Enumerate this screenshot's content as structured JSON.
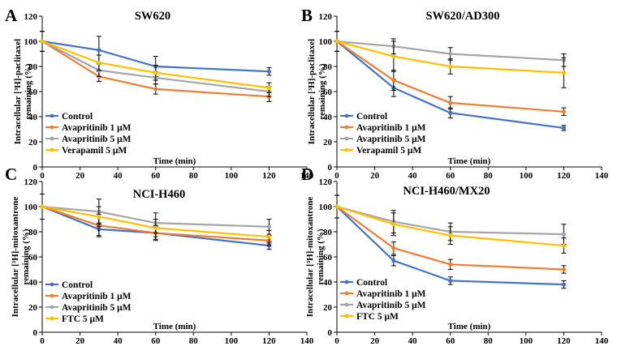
{
  "chart_data": [
    {
      "type": "line",
      "panel_letter": "A",
      "title": "SW620",
      "xlabel": "Time (min)",
      "ylabel": [
        "Intracellular [³H]-paclitaxel",
        "remaining (%)"
      ],
      "xlim": [
        0,
        140
      ],
      "ylim": [
        0,
        120
      ],
      "xticks": [
        0,
        20,
        40,
        60,
        80,
        100,
        120,
        140
      ],
      "yticks": [
        0,
        20,
        40,
        60,
        80,
        100,
        120
      ],
      "x": [
        0,
        30,
        60,
        120
      ],
      "legend_position": "bottom-left",
      "series": [
        {
          "name": "Control",
          "color": "#4472C4",
          "values": [
            100,
            93,
            80,
            76
          ],
          "errors": [
            8,
            11,
            8,
            3
          ]
        },
        {
          "name": "Avapritinib 1 μM",
          "color": "#ED7D31",
          "values": [
            100,
            72,
            62,
            56
          ],
          "errors": [
            8,
            4,
            4,
            4
          ]
        },
        {
          "name": "Avapritinib 5 μM",
          "color": "#A5A5A5",
          "values": [
            100,
            77,
            71,
            60
          ],
          "errors": [
            8,
            5,
            5,
            4
          ]
        },
        {
          "name": "Verapamil 5 μM",
          "color": "#FFC000",
          "values": [
            100,
            83,
            75,
            63
          ],
          "errors": [
            8,
            6,
            6,
            4
          ]
        }
      ]
    },
    {
      "type": "line",
      "panel_letter": "B",
      "title": "SW620/AD300",
      "xlabel": "Time (min)",
      "ylabel": [
        "Intracellular [³H]-paclitaxel",
        "remaining (%)"
      ],
      "xlim": [
        0,
        140
      ],
      "ylim": [
        0,
        120
      ],
      "xticks": [
        0,
        20,
        40,
        60,
        80,
        100,
        120,
        140
      ],
      "yticks": [
        0,
        20,
        40,
        60,
        80,
        100,
        120
      ],
      "x": [
        0,
        30,
        60,
        120
      ],
      "legend_position": "bottom-left",
      "series": [
        {
          "name": "Control",
          "color": "#4472C4",
          "values": [
            100,
            63,
            43,
            31
          ],
          "errors": [
            8,
            7,
            4,
            2
          ]
        },
        {
          "name": "Avapritinib 1 μM",
          "color": "#ED7D31",
          "values": [
            100,
            69,
            51,
            44
          ],
          "errors": [
            8,
            8,
            5,
            3
          ]
        },
        {
          "name": "Avapritinib 5 μM",
          "color": "#A5A5A5",
          "values": [
            100,
            96,
            90,
            85
          ],
          "errors": [
            8,
            6,
            5,
            5
          ]
        },
        {
          "name": "Verapamil 5 μM",
          "color": "#FFC000",
          "values": [
            100,
            88,
            80,
            75
          ],
          "errors": [
            8,
            12,
            6,
            12
          ]
        }
      ]
    },
    {
      "type": "line",
      "panel_letter": "C",
      "title": "NCI-H460",
      "xlabel": "Time (min)",
      "ylabel": [
        "Intracellular [³H]-mitoxantrone",
        "remaining (%)"
      ],
      "xlim": [
        0,
        140
      ],
      "ylim": [
        0,
        120
      ],
      "xticks": [
        0,
        20,
        40,
        60,
        80,
        100,
        120,
        140
      ],
      "yticks": [
        0,
        20,
        40,
        60,
        80,
        100,
        120
      ],
      "x": [
        0,
        30,
        60,
        120
      ],
      "legend_position": "bottom-left",
      "series": [
        {
          "name": "Control",
          "color": "#4472C4",
          "values": [
            100,
            82,
            79,
            69
          ],
          "errors": [
            10,
            5,
            5,
            3
          ]
        },
        {
          "name": "Avapritinib 1 μM",
          "color": "#ED7D31",
          "values": [
            100,
            85,
            79,
            73
          ],
          "errors": [
            10,
            9,
            6,
            4
          ]
        },
        {
          "name": "Avapritinib 5 μM",
          "color": "#A5A5A5",
          "values": [
            100,
            96,
            87,
            84
          ],
          "errors": [
            10,
            10,
            8,
            6
          ]
        },
        {
          "name": "FTC 5 μM",
          "color": "#FFC000",
          "values": [
            100,
            92,
            83,
            76
          ],
          "errors": [
            10,
            8,
            7,
            5
          ]
        }
      ]
    },
    {
      "type": "line",
      "panel_letter": "D",
      "title": "NCI-H460/MX20",
      "xlabel": "Time (min)",
      "ylabel": [
        "Intracellular [³H]-mitoxantrone",
        "remaining (%)"
      ],
      "xlim": [
        0,
        140
      ],
      "ylim": [
        0,
        120
      ],
      "xticks": [
        0,
        20,
        40,
        60,
        80,
        100,
        120,
        140
      ],
      "yticks": [
        0,
        20,
        40,
        60,
        80,
        100,
        120
      ],
      "x": [
        0,
        30,
        60,
        120
      ],
      "legend_position": "bottom-left",
      "series": [
        {
          "name": "Control",
          "color": "#4472C4",
          "values": [
            100,
            57,
            41,
            38
          ],
          "errors": [
            9,
            4,
            3,
            3
          ]
        },
        {
          "name": "Avapritinib 1 μM",
          "color": "#ED7D31",
          "values": [
            100,
            67,
            54,
            50
          ],
          "errors": [
            9,
            5,
            4,
            3
          ]
        },
        {
          "name": "Avapritinib 5 μM",
          "color": "#A5A5A5",
          "values": [
            100,
            88,
            80,
            78
          ],
          "errors": [
            9,
            9,
            7,
            8
          ]
        },
        {
          "name": "FTC 5 μM",
          "color": "#FFC000",
          "values": [
            100,
            86,
            77,
            69
          ],
          "errors": [
            9,
            9,
            7,
            6
          ]
        }
      ]
    }
  ]
}
